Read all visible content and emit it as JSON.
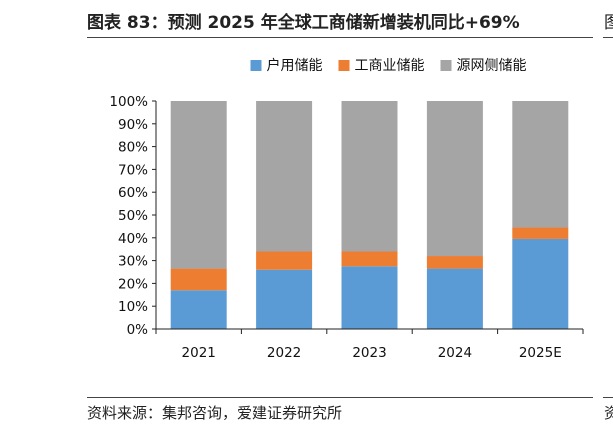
{
  "figure": {
    "title": "图表 83：预测 2025 年全球工商储新增装机同比+69%",
    "source": "资料来源：集邦咨询，爱建证券研究所",
    "right_edge_title_fragment": "图",
    "right_edge_source_fragment": "资"
  },
  "chart_data": {
    "type": "bar",
    "stacked": true,
    "categories": [
      "2021",
      "2022",
      "2023",
      "2024",
      "2025E"
    ],
    "series": [
      {
        "name": "户用储能",
        "color": "#5b9bd5",
        "values": [
          17,
          26,
          27.5,
          26.5,
          39.5
        ]
      },
      {
        "name": "工商业储能",
        "color": "#ed7d31",
        "values": [
          9.5,
          8,
          6.5,
          5.5,
          5
        ]
      },
      {
        "name": "源网侧储能",
        "color": "#a5a5a5",
        "values": [
          73.5,
          66,
          66,
          68,
          55.5
        ]
      }
    ],
    "ylim": [
      0,
      100
    ],
    "yticks": [
      "0%",
      "10%",
      "20%",
      "30%",
      "40%",
      "50%",
      "60%",
      "70%",
      "80%",
      "90%",
      "100%"
    ],
    "legend_position": "top",
    "grid": false
  }
}
